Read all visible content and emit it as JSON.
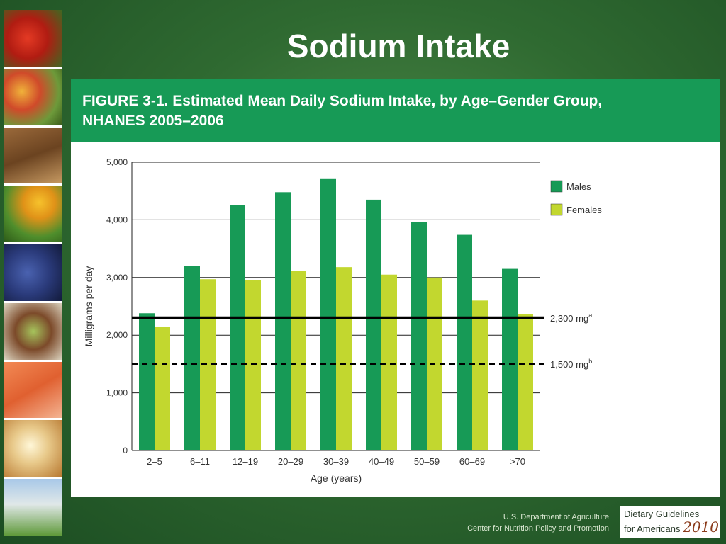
{
  "slide": {
    "title": "Sodium Intake"
  },
  "figure": {
    "title_line1": "FIGURE 3-1. Estimated Mean Daily Sodium Intake, by Age–Gender Group,",
    "title_line2": "NHANES 2005–2006"
  },
  "footer": {
    "org_line1": "U.S. Department of Agriculture",
    "org_line2": "Center for Nutrition Policy and Promotion",
    "logo_line1": "Dietary Guidelines",
    "logo_line2": "for Americans",
    "logo_year": "2010"
  },
  "colors": {
    "male": "#179a56",
    "female": "#c2d72f",
    "header": "#179a56"
  },
  "photo_strip": [
    "tomatoes",
    "mixed-vegetables",
    "whole-grain-bread",
    "peppers-and-broccoli",
    "blueberries",
    "salad",
    "salmon",
    "yogurt-parfait",
    "family-outdoors"
  ],
  "chart_data": {
    "type": "bar",
    "xlabel": "Age (years)",
    "ylabel": "Milligrams per day",
    "ylim": [
      0,
      5000
    ],
    "yticks": [
      0,
      1000,
      2000,
      3000,
      4000,
      5000
    ],
    "ytick_labels": [
      "0",
      "1,000",
      "2,000",
      "3,000",
      "4,000",
      "5,000"
    ],
    "categories": [
      "2–5",
      "6–11",
      "12–19",
      "20–29",
      "30–39",
      "40–49",
      "50–59",
      "60–69",
      ">70"
    ],
    "series": [
      {
        "name": "Males",
        "values": [
          2380,
          3200,
          4260,
          4480,
          4720,
          4350,
          3960,
          3740,
          3150
        ]
      },
      {
        "name": "Females",
        "values": [
          2150,
          2970,
          2950,
          3110,
          3180,
          3050,
          3000,
          2600,
          2370
        ]
      }
    ],
    "reference_lines": [
      {
        "value": 2300,
        "label": "2,300 mg",
        "superscript": "a",
        "style": "solid"
      },
      {
        "value": 1500,
        "label": "1,500 mg",
        "superscript": "b",
        "style": "dashed"
      }
    ],
    "grid": true,
    "legend_position": "right"
  }
}
